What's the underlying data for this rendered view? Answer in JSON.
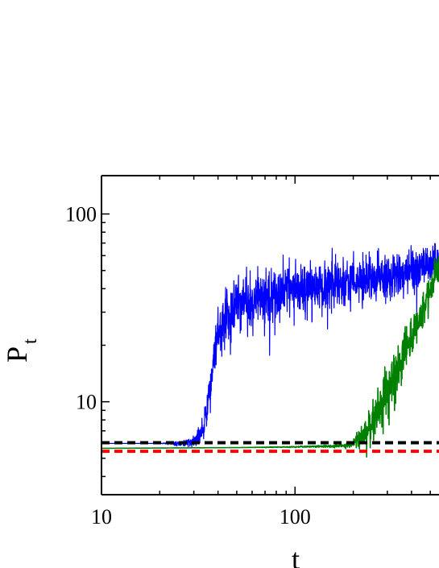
{
  "chart_data": {
    "type": "line",
    "title": "",
    "xlabel": "t",
    "ylabel": "P",
    "ylabel_subscript": "t",
    "xscale": "log",
    "yscale": "log",
    "xlim": [
      10,
      560
    ],
    "ylim": [
      3.2,
      160
    ],
    "grid": false,
    "legend": "none",
    "x_ticks": [
      {
        "value": 10,
        "label": "10"
      },
      {
        "value": 100,
        "label": "100"
      }
    ],
    "y_ticks": [
      {
        "value": 10,
        "label": "10"
      },
      {
        "value": 100,
        "label": "100"
      }
    ],
    "series": [
      {
        "color": "#0000ff",
        "style": "solid",
        "x": [
          10,
          20,
          26,
          30,
          33,
          35,
          37,
          39,
          42,
          45,
          50,
          60,
          80,
          100,
          150,
          200,
          300,
          400,
          500,
          560
        ],
        "y": [
          6.0,
          6.0,
          6.0,
          6.1,
          7.0,
          9.0,
          13.0,
          20.0,
          27.0,
          30.0,
          33.0,
          36.0,
          38.0,
          40.0,
          42.0,
          44.0,
          46.0,
          50.0,
          54.0,
          57.0
        ],
        "noise": [
          0,
          0,
          0.03,
          0.06,
          0.12,
          0.16,
          0.22,
          0.25,
          0.27,
          0.28,
          0.28,
          0.28,
          0.28,
          0.28,
          0.26,
          0.24,
          0.22,
          0.2,
          0.18,
          0.17
        ]
      },
      {
        "color": "#008000",
        "style": "solid",
        "x": [
          10,
          50,
          100,
          150,
          180,
          200,
          220,
          240,
          260,
          280,
          300,
          330,
          360,
          400,
          450,
          500,
          530,
          560
        ],
        "y": [
          5.65,
          5.7,
          5.75,
          5.8,
          5.85,
          6.0,
          6.4,
          7.2,
          8.3,
          9.8,
          11.5,
          14.0,
          17.0,
          22.0,
          29.0,
          40.0,
          50.0,
          52.0
        ],
        "noise": [
          0,
          0,
          0.005,
          0.01,
          0.02,
          0.05,
          0.1,
          0.16,
          0.2,
          0.22,
          0.23,
          0.23,
          0.22,
          0.2,
          0.18,
          0.15,
          0.12,
          0.12
        ]
      },
      {
        "color": "#000000",
        "style": "dashed",
        "x": [
          10,
          560
        ],
        "y": [
          6.05,
          6.05
        ]
      },
      {
        "color": "#ff0000",
        "style": "dashed",
        "x": [
          10,
          560
        ],
        "y": [
          5.45,
          5.45
        ]
      }
    ]
  }
}
